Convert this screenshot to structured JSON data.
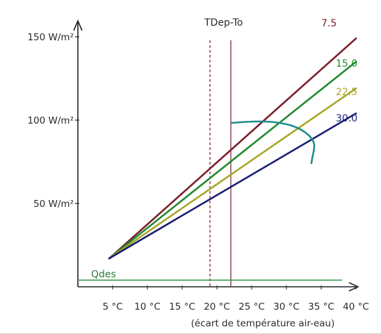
{
  "chart_data": {
    "type": "line",
    "x_ticks": [
      "5 °C",
      "10 °C",
      "15 °C",
      "20 °C",
      "25 °C",
      "30 °C",
      "35 °C",
      "40 °C"
    ],
    "x_tick_display": [
      "5 °C",
      "10 °C",
      "15 °C",
      "20 °C",
      "25 °C",
      "30 °C",
      "35 °C",
      "40 °C"
    ],
    "y_ticks": [
      {
        "value": 150,
        "label": "150 W/m²"
      },
      {
        "value": 100,
        "label": "100 W/m²"
      },
      {
        "value": 50,
        "label": "50 W/m²"
      }
    ],
    "xlim": [
      0,
      42
    ],
    "ylim": [
      0,
      160
    ],
    "xlabel": "(écart de température air-eau)",
    "ylabel": "",
    "series": [
      {
        "name": "7.5",
        "color": "#7a1f2c",
        "x": [
          4.5,
          40
        ],
        "y": [
          17,
          149
        ]
      },
      {
        "name": "15.0",
        "color": "#1f8a2e",
        "x": [
          4.5,
          40
        ],
        "y": [
          17,
          135
        ]
      },
      {
        "name": "22.5",
        "color": "#a7a72a",
        "x": [
          4.5,
          40
        ],
        "y": [
          17,
          119
        ]
      },
      {
        "name": "30.0",
        "color": "#1a1f73",
        "x": [
          4.5,
          40
        ],
        "y": [
          17,
          104
        ]
      }
    ],
    "vertical_lines": [
      {
        "label": "TDep-To",
        "x": 22,
        "color": "#8b3a4a",
        "style": "solid"
      },
      {
        "x": 19,
        "color": "#8b3a4a",
        "style": "dashed"
      }
    ],
    "hlines": [
      {
        "label": "Qdes",
        "y": 4,
        "color": "#3a9a4a"
      }
    ],
    "annotation_curve_color": "#1e8c8c"
  }
}
